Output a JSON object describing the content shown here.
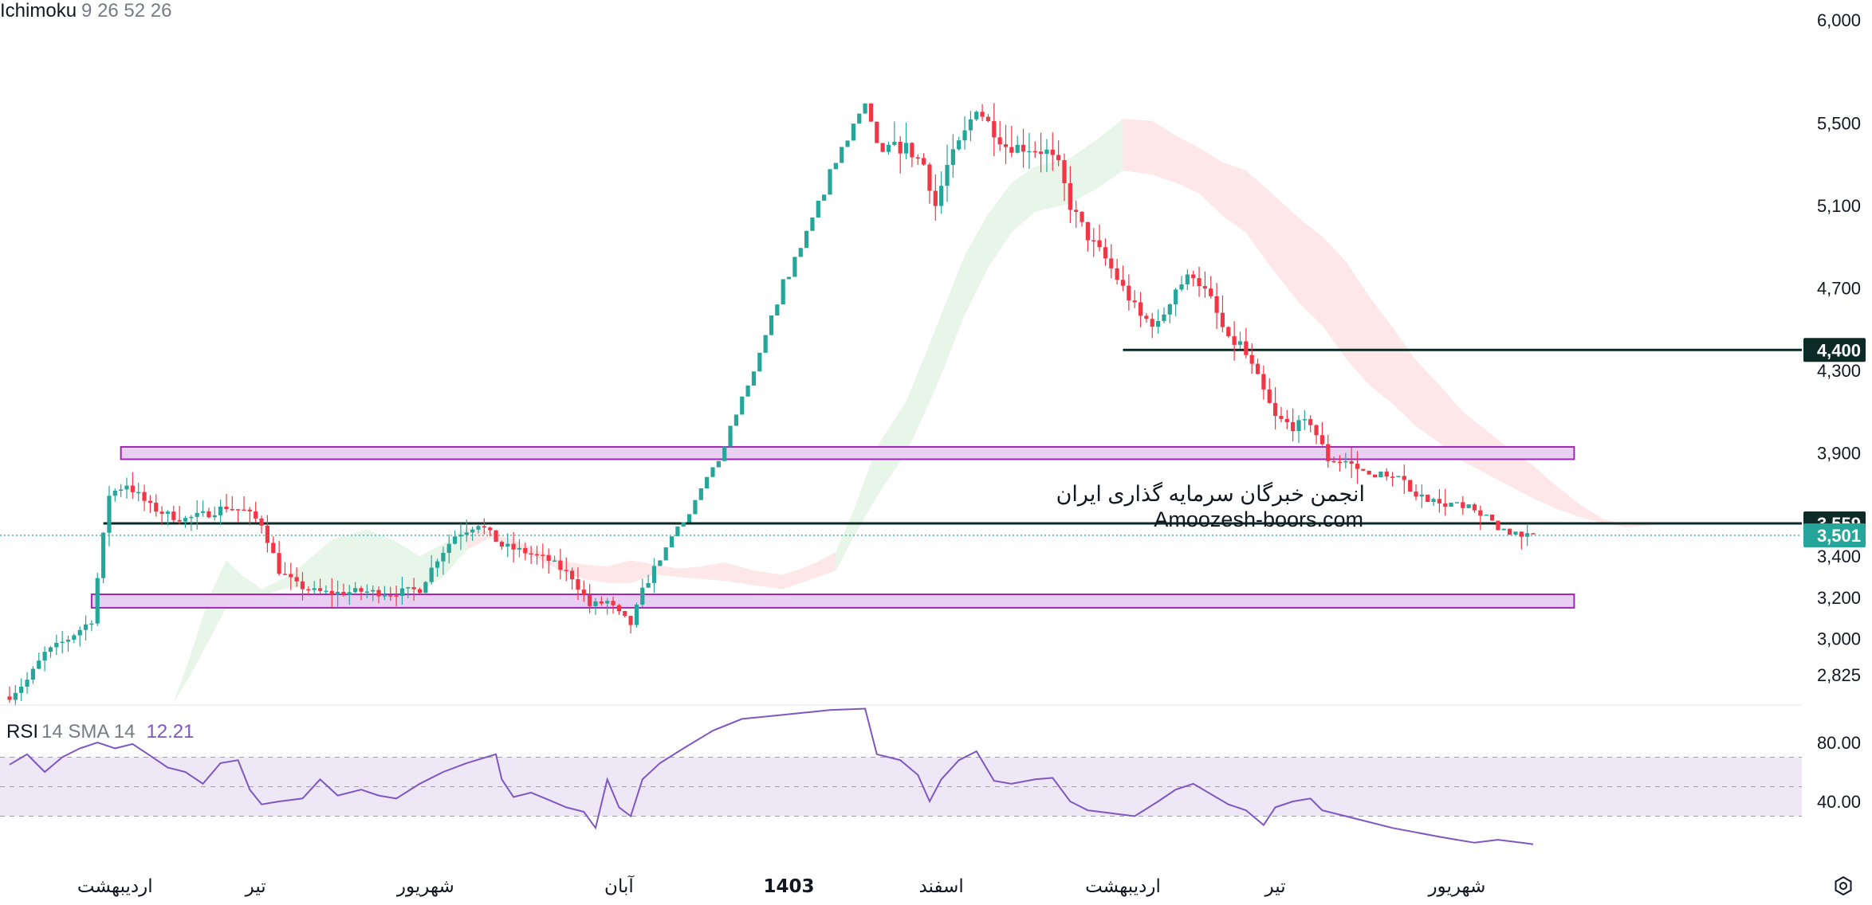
{
  "indicators": {
    "main": {
      "name": "Ichimoku",
      "params": "9 26 52 26"
    },
    "rsi": {
      "name": "RSI",
      "params": "14 SMA 14",
      "value": "12.21"
    }
  },
  "watermark": {
    "line1": "انجمن خبرگان سرمایه گذاری ایران",
    "line2": "Amoozesh-boors.com"
  },
  "colors": {
    "up": "#26a69a",
    "down": "#f23645",
    "cloud_green": "#e8f5e9",
    "cloud_red": "#fde7e9",
    "zone_fill": "#e9d0f2",
    "zone_border": "#9c27b0",
    "rsi_line": "#7e57c2",
    "rsi_band": "#ede7f6",
    "level_line": "#0a2a24",
    "price_badge": "#26a69a",
    "level_badge": "#0d2b26"
  },
  "chart_data": {
    "type": "candlestick",
    "price_axis": {
      "ylim": [
        2690,
        6000
      ],
      "ticks": [
        {
          "value": 6000,
          "label": "6,000"
        },
        {
          "value": 5500,
          "label": "5,500"
        },
        {
          "value": 5100,
          "label": "5,100"
        },
        {
          "value": 4700,
          "label": "4,700"
        },
        {
          "value": 4300,
          "label": "4,300"
        },
        {
          "value": 3900,
          "label": "3,900"
        },
        {
          "value": 3400,
          "label": "3,400"
        },
        {
          "value": 3200,
          "label": "3,200"
        },
        {
          "value": 3000,
          "label": "3,000"
        },
        {
          "value": 2825,
          "label": "2,825"
        }
      ]
    },
    "time_axis": {
      "bar_count": 290,
      "ticks": [
        {
          "bar": 18,
          "label": "اردیبهشت",
          "bold": false
        },
        {
          "bar": 42,
          "label": "تیر",
          "bold": false
        },
        {
          "bar": 71,
          "label": "شهریور",
          "bold": false
        },
        {
          "bar": 104,
          "label": "آبان",
          "bold": false
        },
        {
          "bar": 133,
          "label": "1403",
          "bold": true
        },
        {
          "bar": 159,
          "label": "اسفند",
          "bold": false
        },
        {
          "bar": 190,
          "label": "اردیبهشت",
          "bold": false
        },
        {
          "bar": 216,
          "label": "تیر",
          "bold": false
        },
        {
          "bar": 247,
          "label": "شهریور",
          "bold": false
        }
      ]
    },
    "close_path": [
      [
        0,
        2720
      ],
      [
        3,
        2800
      ],
      [
        6,
        2930
      ],
      [
        10,
        3000
      ],
      [
        14,
        3090
      ],
      [
        17,
        3700
      ],
      [
        20,
        3750
      ],
      [
        24,
        3640
      ],
      [
        27,
        3600
      ],
      [
        30,
        3580
      ],
      [
        33,
        3600
      ],
      [
        37,
        3640
      ],
      [
        40,
        3620
      ],
      [
        43,
        3560
      ],
      [
        46,
        3330
      ],
      [
        49,
        3260
      ],
      [
        52,
        3230
      ],
      [
        55,
        3220
      ],
      [
        60,
        3230
      ],
      [
        65,
        3220
      ],
      [
        70,
        3240
      ],
      [
        73,
        3390
      ],
      [
        76,
        3500
      ],
      [
        80,
        3560
      ],
      [
        84,
        3450
      ],
      [
        88,
        3420
      ],
      [
        92,
        3380
      ],
      [
        96,
        3300
      ],
      [
        99,
        3160
      ],
      [
        102,
        3180
      ],
      [
        104,
        3120
      ],
      [
        106,
        3070
      ],
      [
        108,
        3230
      ],
      [
        112,
        3450
      ],
      [
        116,
        3600
      ],
      [
        118,
        3720
      ],
      [
        121,
        3880
      ],
      [
        124,
        4100
      ],
      [
        128,
        4380
      ],
      [
        132,
        4720
      ],
      [
        136,
        4960
      ],
      [
        140,
        5250
      ],
      [
        143,
        5420
      ],
      [
        146,
        5580
      ],
      [
        148,
        5380
      ],
      [
        150,
        5380
      ],
      [
        153,
        5380
      ],
      [
        156,
        5300
      ],
      [
        158,
        5100
      ],
      [
        160,
        5290
      ],
      [
        163,
        5450
      ],
      [
        165,
        5580
      ],
      [
        167,
        5500
      ],
      [
        170,
        5390
      ],
      [
        174,
        5380
      ],
      [
        177,
        5360
      ],
      [
        179,
        5290
      ],
      [
        181,
        5100
      ],
      [
        184,
        4950
      ],
      [
        187,
        4840
      ],
      [
        190,
        4700
      ],
      [
        193,
        4560
      ],
      [
        196,
        4520
      ],
      [
        199,
        4700
      ],
      [
        202,
        4770
      ],
      [
        205,
        4640
      ],
      [
        208,
        4440
      ],
      [
        210,
        4430
      ],
      [
        213,
        4260
      ],
      [
        216,
        4070
      ],
      [
        219,
        4030
      ],
      [
        222,
        4050
      ],
      [
        225,
        3870
      ],
      [
        228,
        3860
      ],
      [
        232,
        3790
      ],
      [
        236,
        3800
      ],
      [
        240,
        3710
      ],
      [
        244,
        3660
      ],
      [
        248,
        3640
      ],
      [
        252,
        3600
      ],
      [
        255,
        3520
      ],
      [
        258,
        3510
      ],
      [
        260,
        3495
      ]
    ],
    "ichimoku_cloud": {
      "top": [
        [
          28,
          2690
        ],
        [
          31,
          2930
        ],
        [
          34,
          3200
        ],
        [
          37,
          3380
        ],
        [
          40,
          3300
        ],
        [
          43,
          3240
        ],
        [
          48,
          3310
        ],
        [
          55,
          3480
        ],
        [
          61,
          3530
        ],
        [
          66,
          3470
        ],
        [
          70,
          3400
        ],
        [
          74,
          3460
        ],
        [
          78,
          3540
        ],
        [
          82,
          3520
        ],
        [
          86,
          3480
        ],
        [
          90,
          3430
        ],
        [
          94,
          3380
        ],
        [
          98,
          3360
        ],
        [
          102,
          3350
        ],
        [
          106,
          3380
        ],
        [
          110,
          3360
        ],
        [
          114,
          3340
        ],
        [
          118,
          3350
        ],
        [
          122,
          3370
        ],
        [
          127,
          3330
        ],
        [
          132,
          3310
        ],
        [
          137,
          3360
        ],
        [
          141,
          3420
        ],
        [
          144,
          3620
        ],
        [
          148,
          3930
        ],
        [
          153,
          4150
        ],
        [
          158,
          4500
        ],
        [
          163,
          4860
        ],
        [
          167,
          5060
        ],
        [
          171,
          5210
        ],
        [
          175,
          5290
        ],
        [
          181,
          5330
        ],
        [
          186,
          5430
        ],
        [
          190,
          5520
        ],
        [
          195,
          5510
        ],
        [
          199,
          5440
        ],
        [
          203,
          5380
        ],
        [
          207,
          5310
        ],
        [
          211,
          5270
        ],
        [
          215,
          5170
        ],
        [
          220,
          5040
        ],
        [
          224,
          4950
        ],
        [
          228,
          4830
        ],
        [
          232,
          4660
        ],
        [
          236,
          4510
        ],
        [
          240,
          4350
        ],
        [
          244,
          4230
        ],
        [
          248,
          4100
        ],
        [
          252,
          4010
        ],
        [
          256,
          3920
        ],
        [
          260,
          3840
        ],
        [
          264,
          3740
        ],
        [
          268,
          3650
        ],
        [
          272,
          3580
        ],
        [
          276,
          3550
        ],
        [
          280,
          3560
        ]
      ],
      "bottom": [
        [
          28,
          2690
        ],
        [
          31,
          2830
        ],
        [
          34,
          2990
        ],
        [
          37,
          3150
        ],
        [
          40,
          3200
        ],
        [
          43,
          3210
        ],
        [
          48,
          3250
        ],
        [
          55,
          3240
        ],
        [
          61,
          3230
        ],
        [
          66,
          3220
        ],
        [
          70,
          3230
        ],
        [
          74,
          3300
        ],
        [
          78,
          3430
        ],
        [
          82,
          3490
        ],
        [
          86,
          3440
        ],
        [
          90,
          3390
        ],
        [
          94,
          3330
        ],
        [
          98,
          3290
        ],
        [
          102,
          3270
        ],
        [
          106,
          3270
        ],
        [
          110,
          3310
        ],
        [
          114,
          3300
        ],
        [
          118,
          3290
        ],
        [
          122,
          3280
        ],
        [
          127,
          3260
        ],
        [
          132,
          3240
        ],
        [
          137,
          3290
        ],
        [
          141,
          3330
        ],
        [
          144,
          3490
        ],
        [
          148,
          3690
        ],
        [
          153,
          3900
        ],
        [
          158,
          4210
        ],
        [
          163,
          4570
        ],
        [
          167,
          4800
        ],
        [
          171,
          4970
        ],
        [
          175,
          5070
        ],
        [
          181,
          5110
        ],
        [
          186,
          5190
        ],
        [
          190,
          5270
        ],
        [
          195,
          5250
        ],
        [
          199,
          5210
        ],
        [
          203,
          5160
        ],
        [
          207,
          5050
        ],
        [
          211,
          4970
        ],
        [
          215,
          4810
        ],
        [
          220,
          4630
        ],
        [
          224,
          4520
        ],
        [
          228,
          4360
        ],
        [
          232,
          4230
        ],
        [
          236,
          4140
        ],
        [
          240,
          4030
        ],
        [
          244,
          3950
        ],
        [
          248,
          3860
        ],
        [
          252,
          3800
        ],
        [
          256,
          3740
        ],
        [
          260,
          3680
        ],
        [
          264,
          3630
        ],
        [
          268,
          3590
        ],
        [
          272,
          3560
        ],
        [
          276,
          3540
        ],
        [
          280,
          3550
        ]
      ]
    },
    "zones": [
      {
        "from_bar": 19,
        "to_bar": 267,
        "low": 3870,
        "high": 3930
      },
      {
        "from_bar": 14,
        "to_bar": 267,
        "low": 3150,
        "high": 3215
      }
    ],
    "levels": [
      {
        "value": 4400,
        "label": "4,400",
        "from_bar": 190
      },
      {
        "value": 3559,
        "label": "3,559",
        "from_bar": 16
      }
    ],
    "last_price": {
      "value": 3501,
      "label": "3,501"
    },
    "rsi": {
      "ylim": [
        0,
        100
      ],
      "band": [
        30,
        70
      ],
      "mid": 50,
      "ticks": [
        {
          "value": 80,
          "label": "80.00"
        },
        {
          "value": 40,
          "label": "40.00"
        }
      ],
      "path": [
        [
          0,
          65
        ],
        [
          3,
          72
        ],
        [
          6,
          60
        ],
        [
          9,
          70
        ],
        [
          12,
          76
        ],
        [
          15,
          80
        ],
        [
          18,
          76
        ],
        [
          21,
          79
        ],
        [
          24,
          71
        ],
        [
          27,
          63
        ],
        [
          30,
          60
        ],
        [
          33,
          52
        ],
        [
          36,
          66
        ],
        [
          39,
          68
        ],
        [
          41,
          48
        ],
        [
          43,
          38
        ],
        [
          46,
          40
        ],
        [
          50,
          42
        ],
        [
          53,
          55
        ],
        [
          56,
          44
        ],
        [
          60,
          48
        ],
        [
          63,
          44
        ],
        [
          66,
          42
        ],
        [
          70,
          52
        ],
        [
          74,
          60
        ],
        [
          78,
          66
        ],
        [
          83,
          72
        ],
        [
          84,
          55
        ],
        [
          86,
          43
        ],
        [
          89,
          46
        ],
        [
          92,
          41
        ],
        [
          95,
          36
        ],
        [
          98,
          33
        ],
        [
          100,
          22
        ],
        [
          102,
          55
        ],
        [
          104,
          36
        ],
        [
          106,
          30
        ],
        [
          108,
          55
        ],
        [
          111,
          66
        ],
        [
          115,
          76
        ],
        [
          120,
          88
        ],
        [
          125,
          96
        ],
        [
          130,
          98
        ],
        [
          135,
          100
        ],
        [
          140,
          102
        ],
        [
          146,
          103
        ],
        [
          148,
          72
        ],
        [
          152,
          68
        ],
        [
          155,
          58
        ],
        [
          157,
          40
        ],
        [
          159,
          55
        ],
        [
          162,
          68
        ],
        [
          165,
          74
        ],
        [
          168,
          54
        ],
        [
          171,
          52
        ],
        [
          175,
          55
        ],
        [
          178,
          56
        ],
        [
          181,
          40
        ],
        [
          184,
          34
        ],
        [
          188,
          32
        ],
        [
          192,
          30
        ],
        [
          196,
          40
        ],
        [
          199,
          48
        ],
        [
          202,
          52
        ],
        [
          205,
          45
        ],
        [
          208,
          38
        ],
        [
          211,
          34
        ],
        [
          214,
          24
        ],
        [
          216,
          36
        ],
        [
          219,
          40
        ],
        [
          222,
          42
        ],
        [
          224,
          34
        ],
        [
          228,
          30
        ],
        [
          232,
          26
        ],
        [
          236,
          22
        ],
        [
          240,
          19
        ],
        [
          244,
          16
        ],
        [
          247,
          14
        ],
        [
          250,
          12
        ],
        [
          254,
          14
        ],
        [
          258,
          12
        ],
        [
          260,
          11
        ]
      ]
    }
  }
}
